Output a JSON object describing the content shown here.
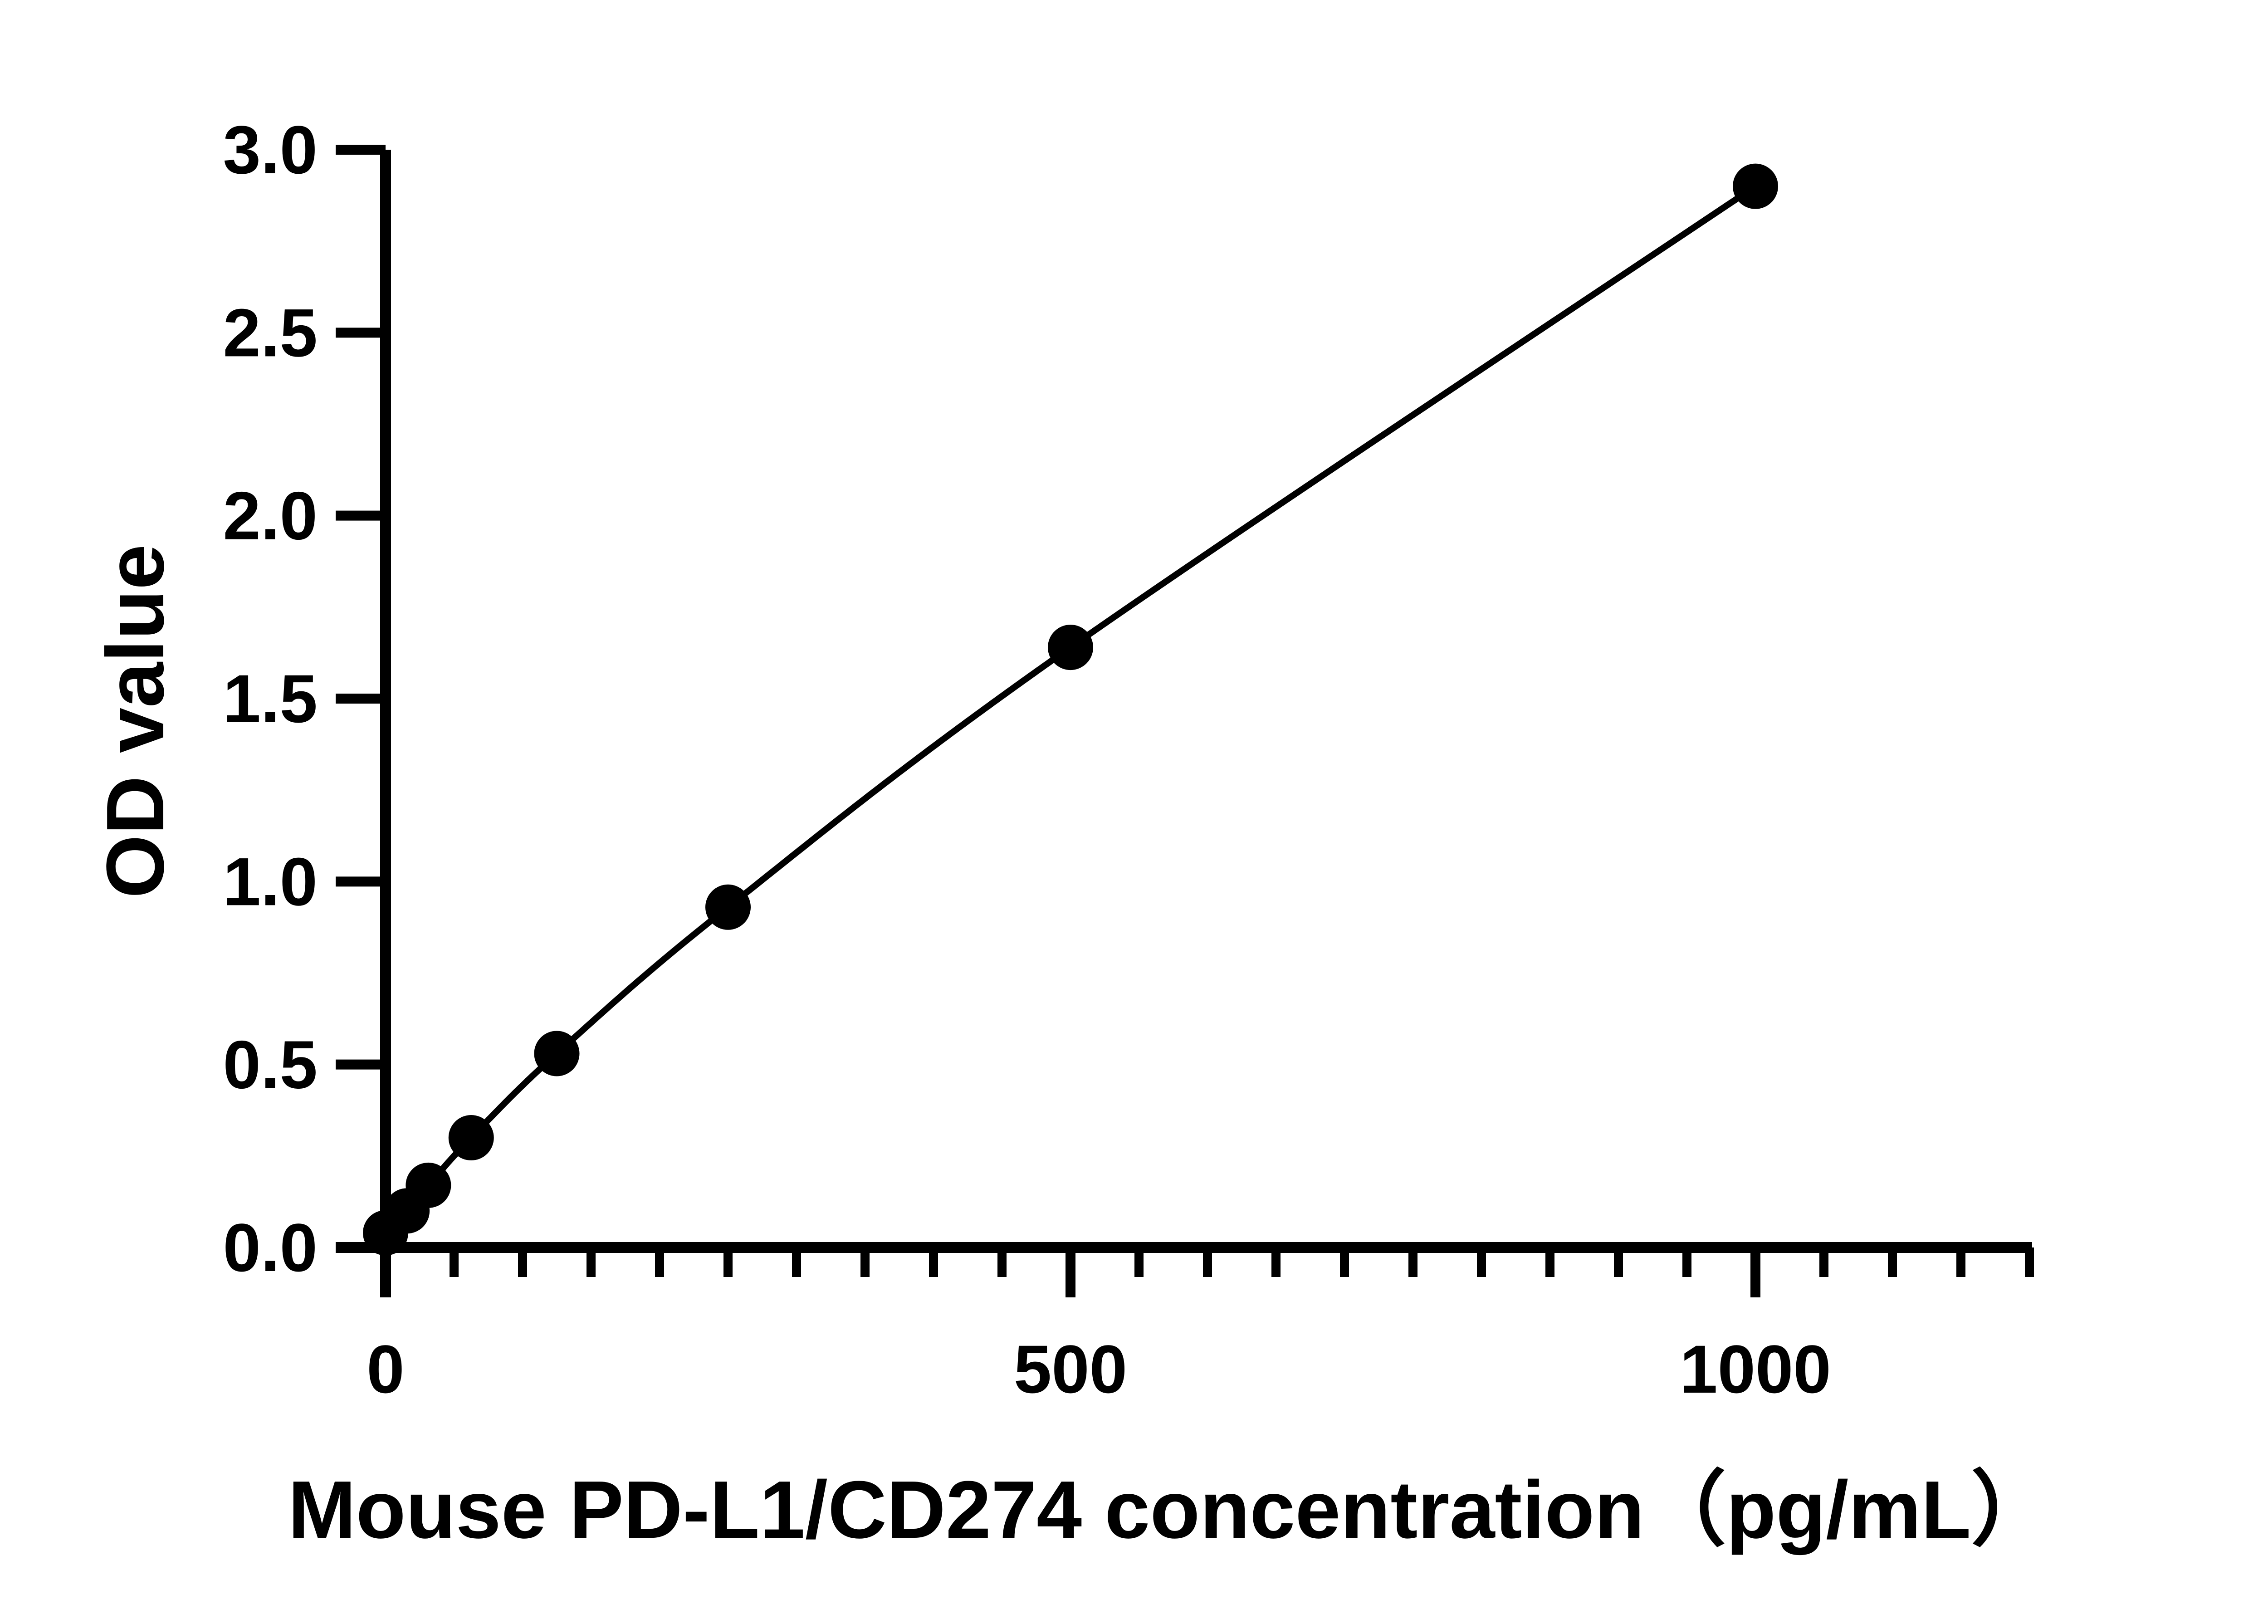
{
  "chart_data": {
    "type": "line",
    "title": "",
    "xlabel": "Mouse PD-L1/CD274 concentration（pg/mL）",
    "ylabel": "OD value",
    "xlim": [
      0,
      1200
    ],
    "ylim": [
      0,
      3.0
    ],
    "x_major_ticks": [
      0,
      500,
      1000
    ],
    "x_tick_labels": [
      "0",
      "500",
      "1000"
    ],
    "x_minor_step": 50,
    "y_ticks": [
      0.0,
      0.5,
      1.0,
      1.5,
      2.0,
      2.5,
      3.0
    ],
    "y_tick_labels": [
      "0.0",
      "0.5",
      "1.0",
      "1.5",
      "2.0",
      "2.5",
      "3.0"
    ],
    "grid": false,
    "legend": "none",
    "series": [
      {
        "x": [
          0,
          15.6,
          31.25,
          62.5,
          125,
          250,
          500,
          1000
        ],
        "y": [
          0.04,
          0.1,
          0.17,
          0.3,
          0.53,
          0.93,
          1.64,
          2.9
        ]
      }
    ],
    "colors": {
      "line": "#000000",
      "marker": "#000000",
      "axis": "#000000"
    }
  }
}
